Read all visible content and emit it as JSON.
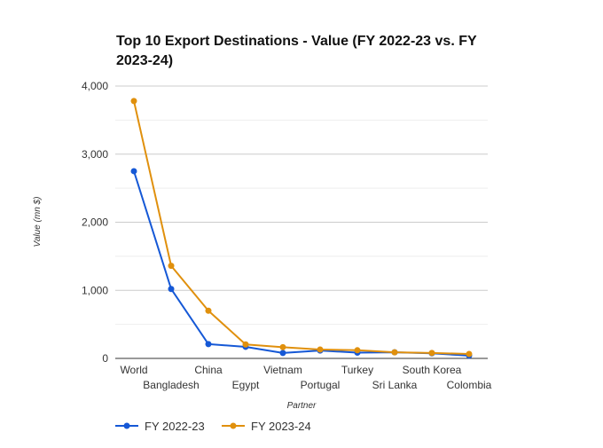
{
  "chart_data": {
    "type": "line",
    "title_lines": [
      "Top 10 Export Destinations - Value (FY 2022-23 vs. FY",
      "2023-24)"
    ],
    "xlabel": "Partner",
    "ylabel": "Value (mn $)",
    "categories": [
      "World",
      "Bangladesh",
      "China",
      "Egypt",
      "Vietnam",
      "Portugal",
      "Turkey",
      "Sri Lanka",
      "South Korea",
      "Colombia"
    ],
    "series": [
      {
        "name": "FY 2022-23",
        "color": "#1558d6",
        "values": [
          2750,
          1020,
          210,
          170,
          80,
          115,
          85,
          90,
          75,
          40
        ]
      },
      {
        "name": "FY 2023-24",
        "color": "#e0900d",
        "values": [
          3780,
          1360,
          700,
          205,
          165,
          130,
          120,
          90,
          80,
          65
        ]
      }
    ],
    "ylim": [
      0,
      4000
    ],
    "yticks": [
      0,
      1000,
      2000,
      3000,
      4000
    ],
    "ytick_labels": [
      "0",
      "1,000",
      "2,000",
      "3,000",
      "4,000"
    ],
    "grid": true,
    "legend_position": "bottom-left"
  }
}
